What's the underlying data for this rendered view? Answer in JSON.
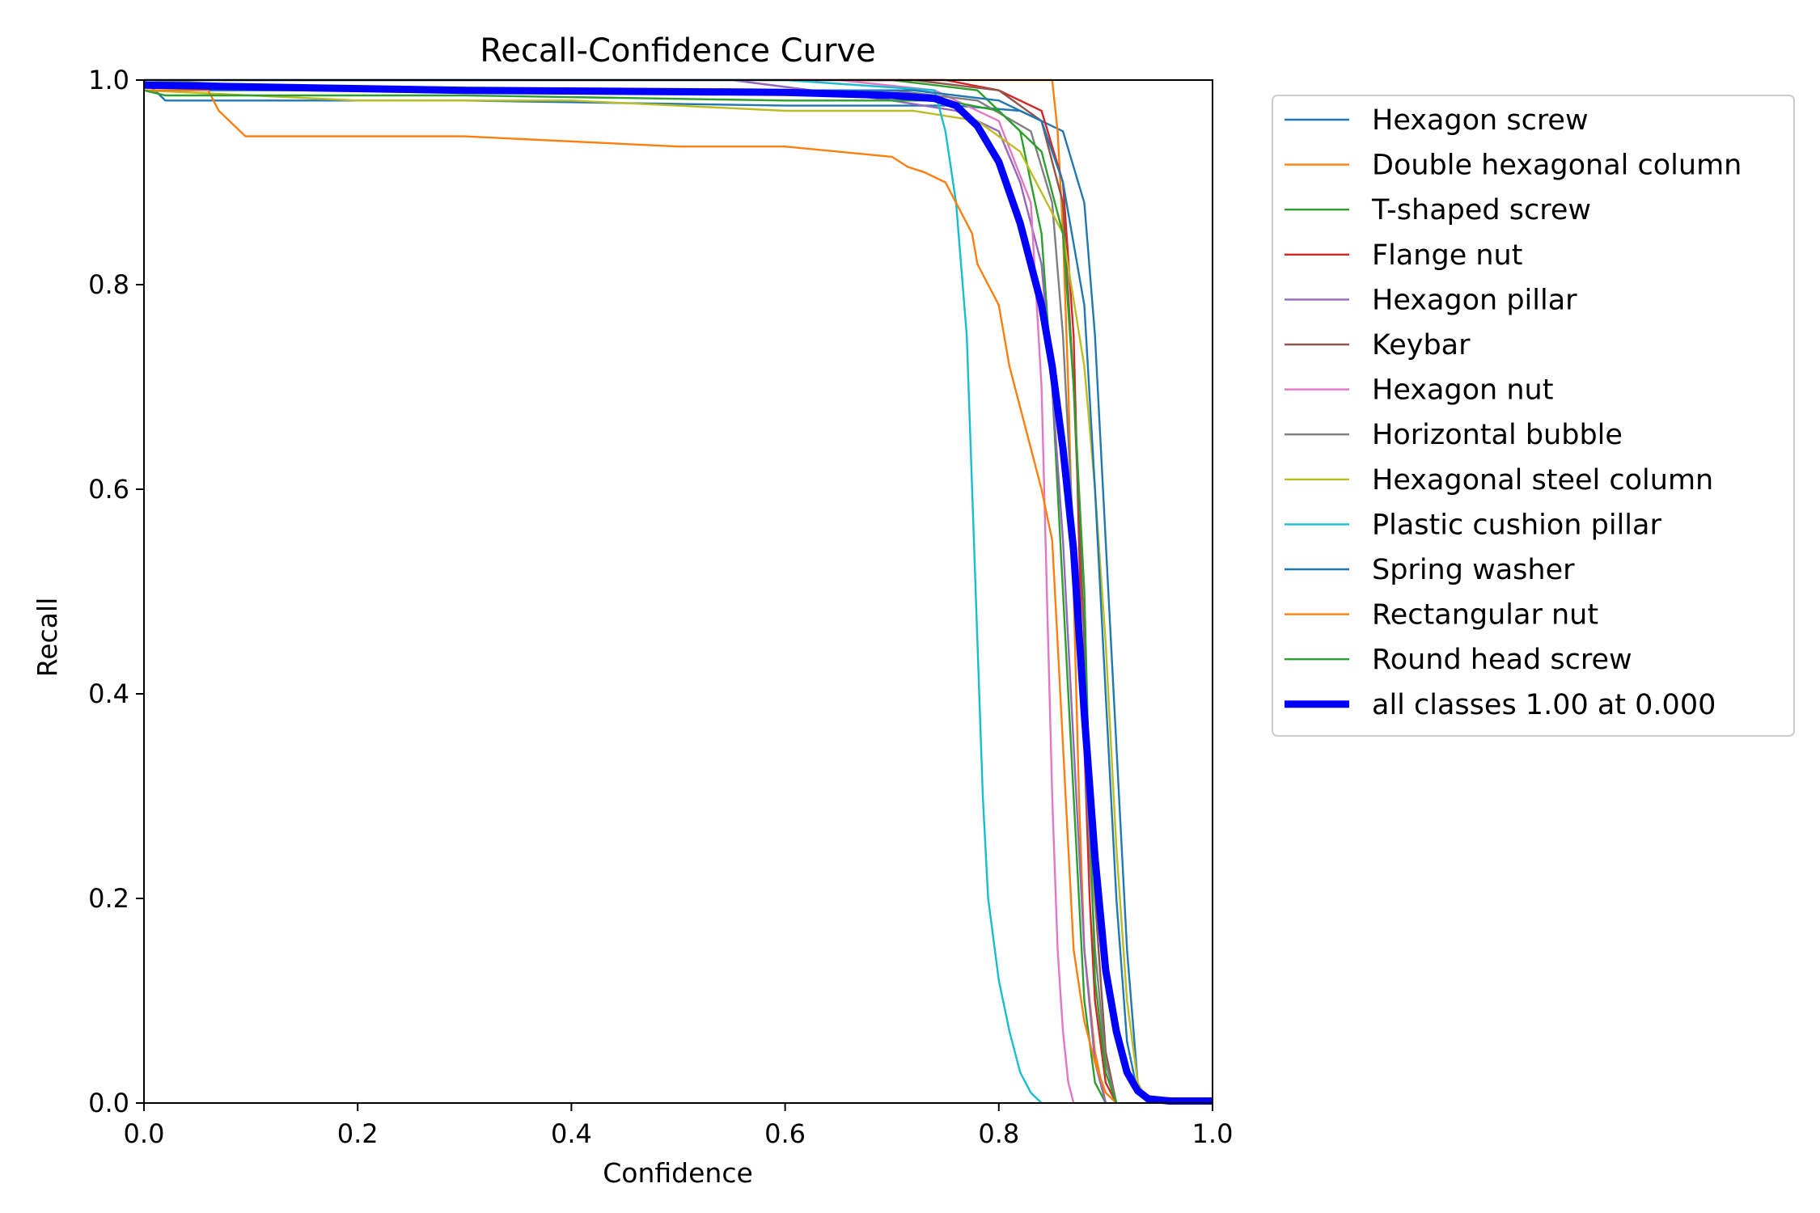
{
  "chart_data": {
    "type": "line",
    "title": "Recall-Confidence Curve",
    "xlabel": "Confidence",
    "ylabel": "Recall",
    "xlim": [
      0,
      1
    ],
    "ylim": [
      0,
      1
    ],
    "xticks": [
      "0.0",
      "0.2",
      "0.4",
      "0.6",
      "0.8",
      "1.0"
    ],
    "yticks": [
      "0.0",
      "0.2",
      "0.4",
      "0.6",
      "0.8",
      "1.0"
    ],
    "grid": false,
    "legend_position": "outside-right-top",
    "series": [
      {
        "name": "Hexagon screw",
        "color": "#1f77b4",
        "points": [
          [
            0,
            1.0
          ],
          [
            0.02,
            0.98
          ],
          [
            0.3,
            0.98
          ],
          [
            0.6,
            0.975
          ],
          [
            0.76,
            0.975
          ],
          [
            0.82,
            0.97
          ],
          [
            0.86,
            0.95
          ],
          [
            0.88,
            0.88
          ],
          [
            0.89,
            0.75
          ],
          [
            0.9,
            0.55
          ],
          [
            0.91,
            0.35
          ],
          [
            0.92,
            0.15
          ],
          [
            0.93,
            0.02
          ],
          [
            0.94,
            0.0
          ]
        ]
      },
      {
        "name": "Double hexagonal column",
        "color": "#ff7f0e",
        "points": [
          [
            0,
            1.0
          ],
          [
            0.85,
            1.0
          ],
          [
            0.855,
            0.95
          ],
          [
            0.86,
            0.85
          ],
          [
            0.865,
            0.7
          ],
          [
            0.87,
            0.5
          ],
          [
            0.875,
            0.3
          ],
          [
            0.88,
            0.15
          ],
          [
            0.89,
            0.05
          ],
          [
            0.9,
            0.0
          ]
        ]
      },
      {
        "name": "T-shaped screw",
        "color": "#2ca02c",
        "points": [
          [
            0,
            1.0
          ],
          [
            0.7,
            1.0
          ],
          [
            0.78,
            0.99
          ],
          [
            0.82,
            0.95
          ],
          [
            0.84,
            0.85
          ],
          [
            0.85,
            0.7
          ],
          [
            0.86,
            0.5
          ],
          [
            0.87,
            0.3
          ],
          [
            0.88,
            0.1
          ],
          [
            0.89,
            0.02
          ],
          [
            0.9,
            0.0
          ]
        ]
      },
      {
        "name": "Flange nut",
        "color": "#d62728",
        "points": [
          [
            0,
            1.0
          ],
          [
            0.75,
            1.0
          ],
          [
            0.8,
            0.99
          ],
          [
            0.84,
            0.97
          ],
          [
            0.86,
            0.9
          ],
          [
            0.87,
            0.75
          ],
          [
            0.875,
            0.55
          ],
          [
            0.88,
            0.35
          ],
          [
            0.885,
            0.2
          ],
          [
            0.89,
            0.1
          ],
          [
            0.9,
            0.02
          ],
          [
            0.91,
            0.0
          ]
        ]
      },
      {
        "name": "Hexagon pillar",
        "color": "#9467bd",
        "points": [
          [
            0,
            1.0
          ],
          [
            0.55,
            1.0
          ],
          [
            0.7,
            0.98
          ],
          [
            0.76,
            0.97
          ],
          [
            0.8,
            0.95
          ],
          [
            0.82,
            0.9
          ],
          [
            0.84,
            0.82
          ],
          [
            0.85,
            0.7
          ],
          [
            0.86,
            0.55
          ],
          [
            0.87,
            0.35
          ],
          [
            0.88,
            0.15
          ],
          [
            0.89,
            0.04
          ],
          [
            0.9,
            0.0
          ]
        ]
      },
      {
        "name": "Keybar",
        "color": "#8c564b",
        "points": [
          [
            0,
            1.0
          ],
          [
            0.72,
            1.0
          ],
          [
            0.8,
            0.99
          ],
          [
            0.84,
            0.96
          ],
          [
            0.86,
            0.88
          ],
          [
            0.87,
            0.7
          ],
          [
            0.88,
            0.45
          ],
          [
            0.89,
            0.2
          ],
          [
            0.9,
            0.05
          ],
          [
            0.91,
            0.0
          ]
        ]
      },
      {
        "name": "Hexagon nut",
        "color": "#e377c2",
        "points": [
          [
            0,
            1.0
          ],
          [
            0.65,
            1.0
          ],
          [
            0.74,
            0.99
          ],
          [
            0.8,
            0.96
          ],
          [
            0.83,
            0.88
          ],
          [
            0.84,
            0.7
          ],
          [
            0.845,
            0.5
          ],
          [
            0.85,
            0.3
          ],
          [
            0.855,
            0.15
          ],
          [
            0.86,
            0.07
          ],
          [
            0.865,
            0.02
          ],
          [
            0.87,
            0.0
          ]
        ]
      },
      {
        "name": "Horizontal bubble",
        "color": "#7f7f7f",
        "points": [
          [
            0,
            1.0
          ],
          [
            0.2,
            0.99
          ],
          [
            0.7,
            0.99
          ],
          [
            0.78,
            0.98
          ],
          [
            0.83,
            0.95
          ],
          [
            0.85,
            0.88
          ],
          [
            0.86,
            0.75
          ],
          [
            0.87,
            0.55
          ],
          [
            0.88,
            0.35
          ],
          [
            0.89,
            0.15
          ],
          [
            0.9,
            0.04
          ],
          [
            0.91,
            0.0
          ]
        ]
      },
      {
        "name": "Hexagonal steel column",
        "color": "#bcbd22",
        "points": [
          [
            0,
            0.99
          ],
          [
            0.2,
            0.98
          ],
          [
            0.4,
            0.98
          ],
          [
            0.6,
            0.97
          ],
          [
            0.72,
            0.97
          ],
          [
            0.78,
            0.96
          ],
          [
            0.82,
            0.93
          ],
          [
            0.86,
            0.85
          ],
          [
            0.88,
            0.72
          ],
          [
            0.89,
            0.6
          ],
          [
            0.9,
            0.45
          ],
          [
            0.91,
            0.25
          ],
          [
            0.92,
            0.1
          ],
          [
            0.93,
            0.02
          ],
          [
            0.94,
            0.0
          ]
        ]
      },
      {
        "name": "Plastic cushion pillar",
        "color": "#17becf",
        "points": [
          [
            0,
            1.0
          ],
          [
            0.6,
            1.0
          ],
          [
            0.74,
            0.99
          ],
          [
            0.75,
            0.95
          ],
          [
            0.76,
            0.88
          ],
          [
            0.77,
            0.75
          ],
          [
            0.775,
            0.6
          ],
          [
            0.78,
            0.45
          ],
          [
            0.785,
            0.3
          ],
          [
            0.79,
            0.2
          ],
          [
            0.8,
            0.12
          ],
          [
            0.81,
            0.07
          ],
          [
            0.82,
            0.03
          ],
          [
            0.83,
            0.01
          ],
          [
            0.84,
            0.0
          ]
        ]
      },
      {
        "name": "Spring washer",
        "color": "#1f77b4",
        "points": [
          [
            0,
            0.99
          ],
          [
            0.4,
            0.99
          ],
          [
            0.72,
            0.99
          ],
          [
            0.8,
            0.98
          ],
          [
            0.84,
            0.96
          ],
          [
            0.86,
            0.9
          ],
          [
            0.88,
            0.78
          ],
          [
            0.89,
            0.6
          ],
          [
            0.9,
            0.4
          ],
          [
            0.91,
            0.2
          ],
          [
            0.92,
            0.06
          ],
          [
            0.93,
            0.01
          ],
          [
            0.94,
            0.0
          ]
        ]
      },
      {
        "name": "Rectangular nut",
        "color": "#ff7f0e",
        "points": [
          [
            0,
            0.99
          ],
          [
            0.06,
            0.99
          ],
          [
            0.07,
            0.97
          ],
          [
            0.08,
            0.96
          ],
          [
            0.095,
            0.945
          ],
          [
            0.3,
            0.945
          ],
          [
            0.5,
            0.935
          ],
          [
            0.6,
            0.935
          ],
          [
            0.7,
            0.925
          ],
          [
            0.715,
            0.915
          ],
          [
            0.73,
            0.91
          ],
          [
            0.75,
            0.9
          ],
          [
            0.76,
            0.88
          ],
          [
            0.775,
            0.85
          ],
          [
            0.78,
            0.82
          ],
          [
            0.79,
            0.8
          ],
          [
            0.8,
            0.78
          ],
          [
            0.81,
            0.72
          ],
          [
            0.82,
            0.68
          ],
          [
            0.83,
            0.64
          ],
          [
            0.84,
            0.6
          ],
          [
            0.85,
            0.55
          ],
          [
            0.855,
            0.45
          ],
          [
            0.86,
            0.35
          ],
          [
            0.865,
            0.25
          ],
          [
            0.87,
            0.15
          ],
          [
            0.88,
            0.08
          ],
          [
            0.89,
            0.04
          ],
          [
            0.9,
            0.01
          ],
          [
            0.91,
            0.0
          ]
        ]
      },
      {
        "name": "Round head screw",
        "color": "#2ca02c",
        "points": [
          [
            0,
            0.99
          ],
          [
            0.02,
            0.985
          ],
          [
            0.3,
            0.985
          ],
          [
            0.6,
            0.98
          ],
          [
            0.75,
            0.98
          ],
          [
            0.8,
            0.97
          ],
          [
            0.84,
            0.93
          ],
          [
            0.86,
            0.85
          ],
          [
            0.87,
            0.7
          ],
          [
            0.88,
            0.5
          ],
          [
            0.885,
            0.3
          ],
          [
            0.89,
            0.12
          ],
          [
            0.9,
            0.03
          ],
          [
            0.91,
            0.0
          ]
        ]
      },
      {
        "name": "all classes 1.00 at 0.000",
        "color": "#0000ff",
        "thick": true,
        "points": [
          [
            0,
            0.995
          ],
          [
            0.3,
            0.99
          ],
          [
            0.6,
            0.988
          ],
          [
            0.7,
            0.985
          ],
          [
            0.74,
            0.982
          ],
          [
            0.76,
            0.975
          ],
          [
            0.78,
            0.955
          ],
          [
            0.8,
            0.92
          ],
          [
            0.82,
            0.86
          ],
          [
            0.84,
            0.78
          ],
          [
            0.85,
            0.72
          ],
          [
            0.86,
            0.64
          ],
          [
            0.87,
            0.54
          ],
          [
            0.875,
            0.46
          ],
          [
            0.88,
            0.38
          ],
          [
            0.89,
            0.24
          ],
          [
            0.9,
            0.13
          ],
          [
            0.91,
            0.07
          ],
          [
            0.92,
            0.03
          ],
          [
            0.93,
            0.012
          ],
          [
            0.94,
            0.004
          ],
          [
            0.96,
            0.002
          ],
          [
            1.0,
            0.002
          ]
        ]
      }
    ]
  }
}
